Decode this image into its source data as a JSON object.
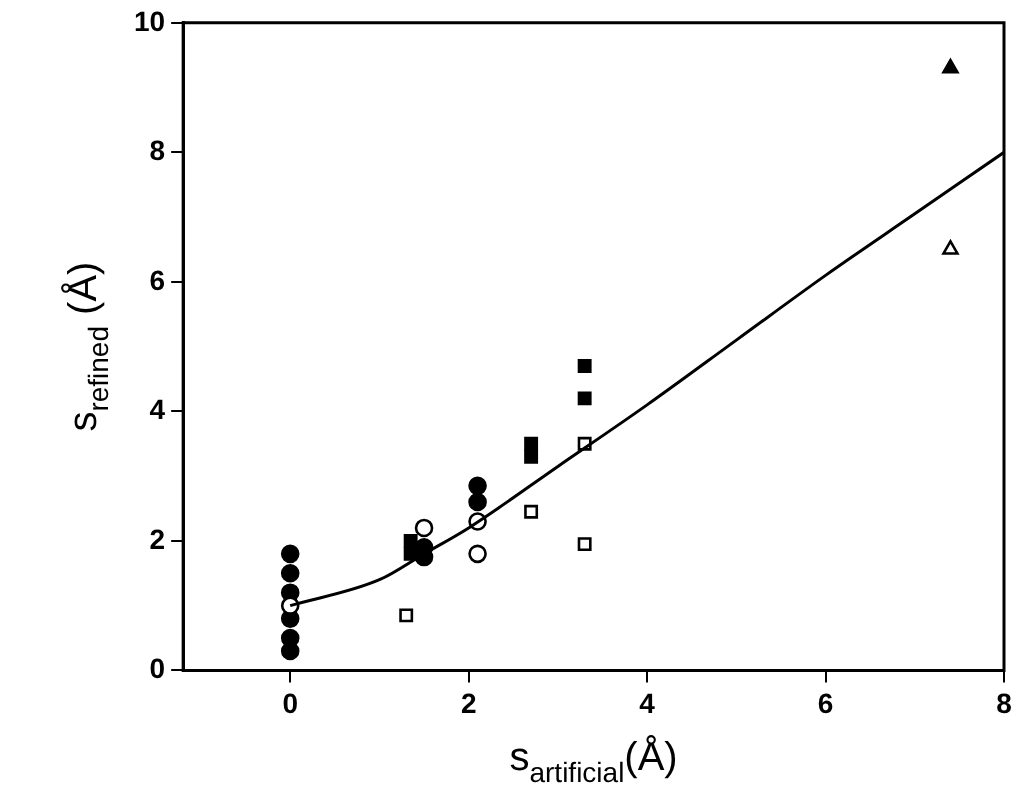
{
  "chart_data": {
    "type": "scatter",
    "xlabel": "s$_{artificial}$(Å)",
    "ylabel": "s$_{refined}$ (Å)",
    "xlim": [
      -1.2,
      8
    ],
    "ylim": [
      0,
      10
    ],
    "xticks": [
      0,
      2,
      4,
      6,
      8
    ],
    "yticks": [
      0,
      2,
      4,
      6,
      8,
      10
    ],
    "grid": false,
    "legend": false,
    "series": [
      {
        "marker": "circle",
        "color": "#000000",
        "x": [
          0,
          0,
          0,
          0,
          0,
          0,
          1.5,
          1.5,
          2.1,
          2.1
        ],
        "values": [
          0.3,
          0.5,
          0.8,
          1.2,
          1.5,
          1.8,
          1.75,
          1.9,
          2.85,
          2.6
        ]
      },
      {
        "marker": "circle",
        "color": "#ffffff",
        "x": [
          0,
          1.5,
          2.1,
          2.1
        ],
        "values": [
          1.0,
          2.2,
          2.3,
          1.8
        ]
      },
      {
        "marker": "square",
        "color": "#000000",
        "x": [
          1.35,
          1.35,
          2.7,
          2.7,
          3.3,
          3.3
        ],
        "values": [
          2.0,
          1.8,
          3.5,
          3.3,
          4.7,
          4.2
        ]
      },
      {
        "marker": "square",
        "color": "#ffffff",
        "x": [
          1.3,
          2.7,
          3.3,
          3.3
        ],
        "values": [
          0.85,
          2.45,
          3.5,
          1.95
        ]
      },
      {
        "marker": "triangle",
        "color": "#000000",
        "x": [
          7.4
        ],
        "values": [
          9.3
        ]
      },
      {
        "marker": "triangle",
        "color": "#ffffff",
        "x": [
          7.4
        ],
        "values": [
          6.5
        ]
      },
      {
        "type": "line",
        "marker": "none",
        "color": "#000000",
        "x": [
          0,
          1,
          1.5,
          2,
          3,
          4,
          5,
          6,
          7,
          8
        ],
        "values": [
          1.0,
          1.4,
          1.8,
          2.2,
          3.15,
          4.1,
          5.1,
          6.1,
          7.05,
          8.0
        ]
      }
    ]
  }
}
